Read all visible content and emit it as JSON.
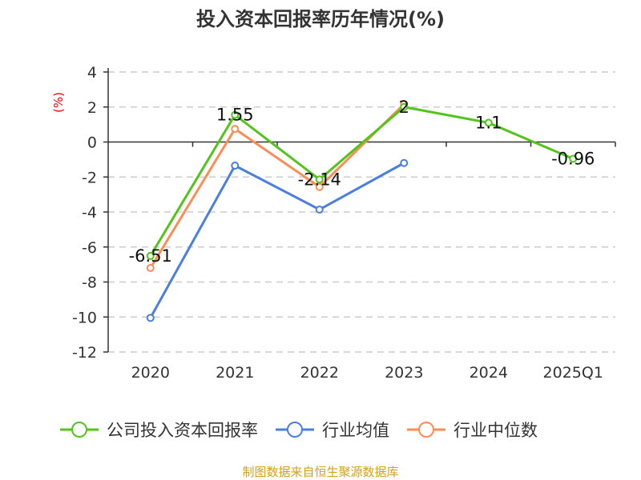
{
  "chart_data": {
    "type": "line",
    "title": "投入资本回报率历年情况(%)",
    "ylabel": "(%)",
    "categories": [
      "2020",
      "2021",
      "2022",
      "2023",
      "2024",
      "2025Q1"
    ],
    "ylim": [
      -12,
      4
    ],
    "yticks": [
      4,
      2,
      0,
      -2,
      -4,
      -6,
      -8,
      -10,
      -12
    ],
    "grid": true,
    "legend_position": "bottom",
    "series": [
      {
        "name": "公司投入资本回报率",
        "color": "#52c41a",
        "values": [
          -6.51,
          1.55,
          -2.14,
          2,
          1.1,
          -0.96
        ],
        "labels": [
          "-6.51",
          "1.55",
          "-2.14",
          "2",
          "1.1",
          "-0.96"
        ]
      },
      {
        "name": "行业均值",
        "color": "#4a7fe0",
        "values": [
          -10.05,
          -1.35,
          -3.86,
          -1.2,
          null,
          null
        ]
      },
      {
        "name": "行业中位数",
        "color": "#ff8c55",
        "values": [
          -7.2,
          0.75,
          -2.57,
          2.17,
          null,
          null
        ]
      }
    ]
  },
  "footer": {
    "source": "制图数据来自恒生聚源数据库",
    "color": "#d4a017"
  }
}
